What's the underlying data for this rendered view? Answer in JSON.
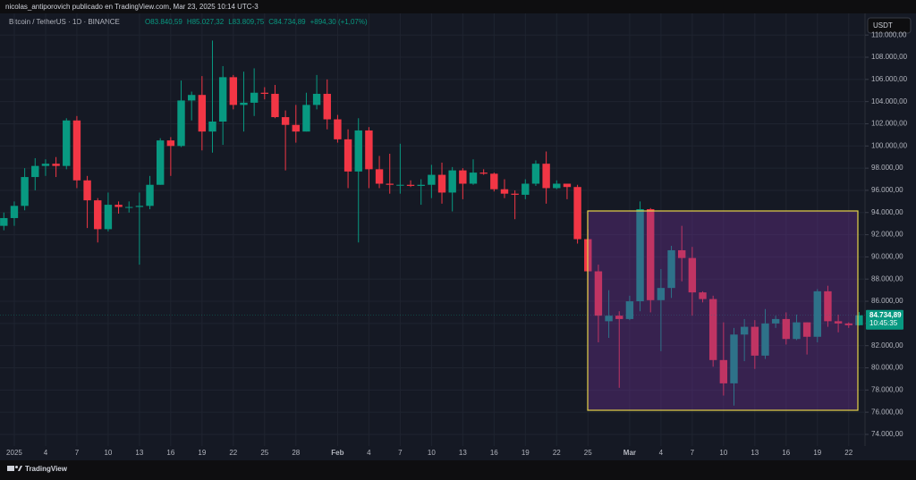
{
  "header": {
    "publisher": "nicolas_antiporovich publicado en TradingView.com, Mar 23, 2025 10:14 UTC-3",
    "brand": "TradingView",
    "currency_button": "USDT"
  },
  "chart_data": {
    "type": "candlestick",
    "symbol": "Bitcoin / TetherUS · 1D · BINANCE",
    "ohlc_legend": [
      "O83.840,59",
      "H85.027,32",
      "L83.809,75",
      "C84.734,89",
      "+894,30 (+1,07%)"
    ],
    "last_price_label": "84.734,89",
    "countdown": "10:45:35",
    "categories": [
      null,
      "2025",
      null,
      null,
      "4",
      null,
      null,
      "7",
      null,
      null,
      "10",
      null,
      null,
      "13",
      null,
      null,
      "16",
      null,
      null,
      "19",
      null,
      null,
      "22",
      null,
      null,
      "25",
      null,
      null,
      "28",
      null,
      null,
      null,
      "Feb",
      null,
      null,
      "4",
      null,
      null,
      "7",
      null,
      null,
      "10",
      null,
      null,
      "13",
      null,
      null,
      "16",
      null,
      null,
      "19",
      null,
      null,
      "22",
      null,
      null,
      "25",
      null,
      null,
      null,
      "Mar",
      null,
      null,
      "4",
      null,
      null,
      "7",
      null,
      null,
      "10",
      null,
      null,
      "13",
      null,
      null,
      "16",
      null,
      null,
      "19",
      null,
      null,
      "22",
      null
    ],
    "open": [
      92800,
      93500,
      94600,
      97200,
      98200,
      98400,
      98200,
      102300,
      96900,
      95100,
      92500,
      94700,
      94500,
      94500,
      94600,
      96500,
      100500,
      100000,
      104100,
      104600,
      101300,
      102200,
      106200,
      103700,
      103900,
      104800,
      104700,
      102600,
      101900,
      101300,
      103700,
      104700,
      102400,
      100600,
      97700,
      101400,
      97900,
      96600,
      96500,
      96500,
      96400,
      96500,
      97400,
      95800,
      97800,
      96600,
      97600,
      97500,
      96100,
      95700,
      95600,
      96600,
      98400,
      96200,
      96600,
      96300,
      91600,
      88700,
      84200,
      84700,
      84400,
      86000,
      94300,
      86100,
      87200,
      90600,
      89900,
      86800,
      86200,
      80700,
      78600,
      83000,
      83700,
      81100,
      84000,
      84400,
      82600,
      84100,
      82800,
      86900,
      84200,
      84000,
      83840.59
    ],
    "high": [
      94000,
      95000,
      98000,
      98900,
      98800,
      99000,
      102500,
      102700,
      97300,
      95300,
      95800,
      95000,
      95000,
      95800,
      97300,
      100700,
      100800,
      105900,
      104900,
      106300,
      109500,
      107200,
      106400,
      106700,
      107000,
      105300,
      105500,
      103200,
      103700,
      104800,
      106400,
      106000,
      102800,
      101500,
      102500,
      101700,
      99100,
      99300,
      100200,
      96900,
      97000,
      98300,
      98500,
      98100,
      98000,
      98800,
      97900,
      97600,
      97000,
      96000,
      97000,
      98700,
      99500,
      96900,
      96600,
      96500,
      92500,
      89300,
      87000,
      85100,
      86500,
      95000,
      94400,
      88900,
      91000,
      92800,
      90900,
      86900,
      86500,
      84100,
      83600,
      84400,
      84300,
      85300,
      84700,
      85000,
      84800,
      84100,
      87100,
      87400,
      84800,
      84100,
      85027.32
    ],
    "low": [
      92400,
      92800,
      94200,
      96000,
      97300,
      97200,
      97900,
      96200,
      92600,
      91300,
      92300,
      93900,
      94000,
      89300,
      94300,
      96500,
      97300,
      99900,
      102300,
      99600,
      99400,
      100100,
      103300,
      101300,
      102700,
      104200,
      102500,
      97800,
      100300,
      101300,
      103300,
      101500,
      100300,
      96200,
      91300,
      96200,
      96200,
      95700,
      95700,
      96300,
      94700,
      95300,
      94800,
      94100,
      95200,
      96500,
      97400,
      95900,
      95300,
      93400,
      95200,
      96400,
      94800,
      96100,
      95200,
      91200,
      86100,
      82300,
      82700,
      78200,
      84300,
      85100,
      85000,
      81500,
      86300,
      87800,
      84700,
      85900,
      80100,
      77500,
      76600,
      80600,
      79900,
      80800,
      83600,
      82100,
      82500,
      81200,
      82300,
      83700,
      83200,
      83600,
      83809.75
    ],
    "close": [
      93500,
      94600,
      97200,
      98200,
      98400,
      98200,
      102300,
      96900,
      95100,
      92500,
      94700,
      94500,
      94500,
      94600,
      96500,
      100500,
      100000,
      104100,
      104600,
      101300,
      102200,
      106200,
      103700,
      103900,
      104800,
      104700,
      102600,
      101900,
      101300,
      103700,
      104700,
      102400,
      100600,
      97700,
      101400,
      97900,
      96600,
      96500,
      96500,
      96400,
      96500,
      97400,
      95800,
      97800,
      96600,
      97600,
      97500,
      96100,
      95700,
      95600,
      96600,
      98400,
      96200,
      96600,
      96300,
      91600,
      88700,
      84700,
      84700,
      84400,
      86000,
      94300,
      86100,
      87200,
      90600,
      89900,
      86800,
      86200,
      80700,
      78600,
      83000,
      83700,
      81100,
      84000,
      84400,
      82600,
      84100,
      82800,
      86900,
      84200,
      84000,
      83840.59,
      84734.89
    ],
    "up_color": "#089981",
    "down_color": "#f23645",
    "ylim": [
      72950,
      111950
    ],
    "yticks": [
      {
        "value": 74000,
        "label": "74.000,00"
      },
      {
        "value": 76000,
        "label": "76.000,00"
      },
      {
        "value": 78000,
        "label": "78.000,00"
      },
      {
        "value": 80000,
        "label": "80.000,00"
      },
      {
        "value": 82000,
        "label": "82.000,00"
      },
      {
        "value": 84000,
        "label": "84.000,00"
      },
      {
        "value": 86000,
        "label": "86.000,00"
      },
      {
        "value": 88000,
        "label": "88.000,00"
      },
      {
        "value": 90000,
        "label": "90.000,00"
      },
      {
        "value": 92000,
        "label": "92.000,00"
      },
      {
        "value": 94000,
        "label": "94.000,00"
      },
      {
        "value": 96000,
        "label": "96.000,00"
      },
      {
        "value": 98000,
        "label": "98.000,00"
      },
      {
        "value": 100000,
        "label": "100.000,00"
      },
      {
        "value": 102000,
        "label": "102.000,00"
      },
      {
        "value": 104000,
        "label": "104.000,00"
      },
      {
        "value": 106000,
        "label": "106.000,00"
      },
      {
        "value": 108000,
        "label": "108.000,00"
      },
      {
        "value": 110000,
        "label": "110.000,00"
      }
    ],
    "grid": true
  }
}
